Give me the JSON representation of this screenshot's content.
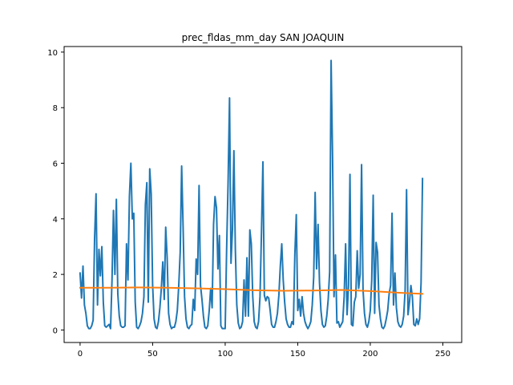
{
  "chart_data": {
    "type": "line",
    "title": "prec_fldas_mm_day SAN JOAQUIN",
    "xlabel": "",
    "ylabel": "",
    "xlim": [
      -11.0,
      263.0
    ],
    "ylim": [
      -0.45,
      10.2
    ],
    "grid": false,
    "x_ticks": [
      0,
      50,
      100,
      150,
      200,
      250
    ],
    "y_ticks": [
      0,
      2,
      4,
      6,
      8,
      10
    ],
    "series": [
      {
        "color": "#1f77b4",
        "points": [
          [
            0,
            2.05
          ],
          [
            1,
            1.15
          ],
          [
            2,
            2.3
          ],
          [
            3,
            0.9
          ],
          [
            4,
            0.6
          ],
          [
            5,
            0.15
          ],
          [
            6,
            0.05
          ],
          [
            7,
            0.05
          ],
          [
            8,
            0.15
          ],
          [
            9,
            0.35
          ],
          [
            10,
            3.3
          ],
          [
            11,
            4.9
          ],
          [
            12,
            0.9
          ],
          [
            13,
            2.9
          ],
          [
            14,
            1.95
          ],
          [
            15,
            3.0
          ],
          [
            16,
            1.0
          ],
          [
            17,
            0.15
          ],
          [
            18,
            0.1
          ],
          [
            19,
            0.15
          ],
          [
            20,
            0.2
          ],
          [
            21,
            0.05
          ],
          [
            22,
            1.8
          ],
          [
            23,
            4.3
          ],
          [
            24,
            2.0
          ],
          [
            25,
            4.7
          ],
          [
            26,
            1.3
          ],
          [
            27,
            0.5
          ],
          [
            28,
            0.15
          ],
          [
            29,
            0.1
          ],
          [
            30,
            0.1
          ],
          [
            31,
            0.15
          ],
          [
            32,
            3.1
          ],
          [
            33,
            1.8
          ],
          [
            34,
            4.8
          ],
          [
            35,
            6.0
          ],
          [
            36,
            4.0
          ],
          [
            37,
            4.2
          ],
          [
            38,
            1.0
          ],
          [
            39,
            0.1
          ],
          [
            40,
            0.05
          ],
          [
            41,
            0.15
          ],
          [
            42,
            0.3
          ],
          [
            43,
            0.6
          ],
          [
            44,
            1.2
          ],
          [
            45,
            4.5
          ],
          [
            46,
            5.3
          ],
          [
            47,
            1.0
          ],
          [
            48,
            5.8
          ],
          [
            49,
            4.9
          ],
          [
            50,
            1.6
          ],
          [
            51,
            0.4
          ],
          [
            52,
            0.1
          ],
          [
            53,
            0.05
          ],
          [
            54,
            0.3
          ],
          [
            55,
            0.8
          ],
          [
            56,
            1.5
          ],
          [
            57,
            2.45
          ],
          [
            58,
            1.1
          ],
          [
            59,
            3.7
          ],
          [
            60,
            2.6
          ],
          [
            61,
            0.6
          ],
          [
            62,
            0.2
          ],
          [
            63,
            0.05
          ],
          [
            64,
            0.1
          ],
          [
            65,
            0.1
          ],
          [
            66,
            0.3
          ],
          [
            67,
            0.7
          ],
          [
            68,
            1.6
          ],
          [
            69,
            2.8
          ],
          [
            70,
            5.9
          ],
          [
            71,
            3.7
          ],
          [
            72,
            1.2
          ],
          [
            73,
            0.4
          ],
          [
            74,
            0.1
          ],
          [
            75,
            0.05
          ],
          [
            76,
            0.15
          ],
          [
            77,
            0.2
          ],
          [
            78,
            1.1
          ],
          [
            79,
            0.7
          ],
          [
            80,
            2.55
          ],
          [
            81,
            2.0
          ],
          [
            82,
            5.2
          ],
          [
            83,
            1.6
          ],
          [
            84,
            1.1
          ],
          [
            85,
            0.5
          ],
          [
            86,
            0.1
          ],
          [
            87,
            0.05
          ],
          [
            88,
            0.15
          ],
          [
            89,
            0.7
          ],
          [
            90,
            1.5
          ],
          [
            91,
            0.8
          ],
          [
            92,
            3.8
          ],
          [
            93,
            4.8
          ],
          [
            94,
            4.4
          ],
          [
            95,
            2.2
          ],
          [
            96,
            3.4
          ],
          [
            97,
            0.15
          ],
          [
            98,
            0.05
          ],
          [
            99,
            0.05
          ],
          [
            100,
            0.05
          ],
          [
            101,
            2.9
          ],
          [
            102,
            5.3
          ],
          [
            103,
            8.35
          ],
          [
            104,
            2.4
          ],
          [
            105,
            3.6
          ],
          [
            106,
            6.45
          ],
          [
            107,
            2.9
          ],
          [
            108,
            0.9
          ],
          [
            109,
            0.25
          ],
          [
            110,
            0.05
          ],
          [
            111,
            0.1
          ],
          [
            112,
            0.3
          ],
          [
            113,
            1.8
          ],
          [
            114,
            0.5
          ],
          [
            115,
            2.6
          ],
          [
            116,
            0.5
          ],
          [
            117,
            3.6
          ],
          [
            118,
            3.1
          ],
          [
            119,
            1.2
          ],
          [
            120,
            0.3
          ],
          [
            121,
            0.1
          ],
          [
            122,
            0.05
          ],
          [
            123,
            0.3
          ],
          [
            124,
            1.2
          ],
          [
            125,
            3.5
          ],
          [
            126,
            6.05
          ],
          [
            127,
            1.25
          ],
          [
            128,
            1.05
          ],
          [
            129,
            1.2
          ],
          [
            130,
            1.15
          ],
          [
            131,
            0.7
          ],
          [
            132,
            0.2
          ],
          [
            133,
            0.1
          ],
          [
            134,
            0.1
          ],
          [
            135,
            0.3
          ],
          [
            136,
            0.6
          ],
          [
            137,
            1.25
          ],
          [
            138,
            2.3
          ],
          [
            139,
            3.1
          ],
          [
            140,
            1.8
          ],
          [
            141,
            1.0
          ],
          [
            142,
            0.4
          ],
          [
            143,
            0.2
          ],
          [
            144,
            0.1
          ],
          [
            145,
            0.1
          ],
          [
            146,
            0.3
          ],
          [
            147,
            0.2
          ],
          [
            148,
            2.7
          ],
          [
            149,
            4.15
          ],
          [
            150,
            0.7
          ],
          [
            151,
            1.1
          ],
          [
            152,
            0.5
          ],
          [
            153,
            1.2
          ],
          [
            154,
            0.6
          ],
          [
            155,
            0.3
          ],
          [
            156,
            0.15
          ],
          [
            157,
            0.05
          ],
          [
            158,
            0.15
          ],
          [
            159,
            0.3
          ],
          [
            160,
            0.9
          ],
          [
            161,
            1.9
          ],
          [
            162,
            4.95
          ],
          [
            163,
            2.2
          ],
          [
            164,
            3.8
          ],
          [
            165,
            1.7
          ],
          [
            166,
            0.7
          ],
          [
            167,
            0.2
          ],
          [
            168,
            0.1
          ],
          [
            169,
            0.15
          ],
          [
            170,
            0.5
          ],
          [
            171,
            1.1
          ],
          [
            172,
            2.1
          ],
          [
            173,
            9.7
          ],
          [
            174,
            6.2
          ],
          [
            175,
            1.2
          ],
          [
            176,
            2.7
          ],
          [
            177,
            0.25
          ],
          [
            178,
            0.3
          ],
          [
            179,
            0.1
          ],
          [
            180,
            0.2
          ],
          [
            181,
            0.3
          ],
          [
            182,
            1.2
          ],
          [
            183,
            3.1
          ],
          [
            184,
            0.55
          ],
          [
            185,
            1.6
          ],
          [
            186,
            5.6
          ],
          [
            187,
            0.2
          ],
          [
            188,
            0.15
          ],
          [
            189,
            1.0
          ],
          [
            190,
            1.2
          ],
          [
            191,
            2.85
          ],
          [
            192,
            1.5
          ],
          [
            193,
            2.0
          ],
          [
            194,
            5.95
          ],
          [
            195,
            1.45
          ],
          [
            196,
            0.6
          ],
          [
            197,
            0.2
          ],
          [
            198,
            0.1
          ],
          [
            199,
            0.3
          ],
          [
            200,
            0.7
          ],
          [
            201,
            1.8
          ],
          [
            202,
            4.85
          ],
          [
            203,
            0.6
          ],
          [
            204,
            3.15
          ],
          [
            205,
            2.8
          ],
          [
            206,
            0.9
          ],
          [
            207,
            0.4
          ],
          [
            208,
            0.1
          ],
          [
            209,
            0.05
          ],
          [
            210,
            0.15
          ],
          [
            211,
            0.4
          ],
          [
            212,
            0.7
          ],
          [
            213,
            1.3
          ],
          [
            214,
            1.6
          ],
          [
            215,
            4.2
          ],
          [
            216,
            0.9
          ],
          [
            217,
            2.05
          ],
          [
            218,
            0.8
          ],
          [
            219,
            0.3
          ],
          [
            220,
            0.15
          ],
          [
            221,
            0.1
          ],
          [
            222,
            0.2
          ],
          [
            223,
            0.5
          ],
          [
            224,
            1.4
          ],
          [
            225,
            5.05
          ],
          [
            226,
            0.55
          ],
          [
            227,
            1.0
          ],
          [
            228,
            1.6
          ],
          [
            229,
            1.2
          ],
          [
            230,
            0.2
          ],
          [
            231,
            0.15
          ],
          [
            232,
            0.4
          ],
          [
            233,
            0.2
          ],
          [
            234,
            0.4
          ],
          [
            235,
            1.7
          ],
          [
            236,
            5.45
          ]
        ]
      },
      {
        "color": "#ff7f0e",
        "points": [
          [
            0,
            1.52
          ],
          [
            20,
            1.52
          ],
          [
            40,
            1.53
          ],
          [
            60,
            1.52
          ],
          [
            80,
            1.5
          ],
          [
            100,
            1.47
          ],
          [
            120,
            1.43
          ],
          [
            140,
            1.41
          ],
          [
            160,
            1.42
          ],
          [
            180,
            1.44
          ],
          [
            200,
            1.4
          ],
          [
            220,
            1.34
          ],
          [
            236,
            1.3
          ]
        ]
      }
    ]
  }
}
